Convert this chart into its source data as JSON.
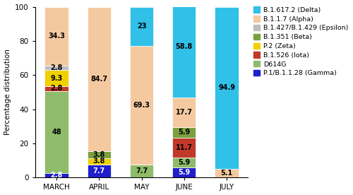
{
  "months": [
    "MARCH",
    "APRIL",
    "MAY",
    "JUNE",
    "JULY"
  ],
  "variants": [
    {
      "name": "P.1/B.1.1.28 (Gamma)",
      "color": "#1F1FCC",
      "values": [
        2.8,
        7.7,
        0.0,
        5.9,
        0.0
      ]
    },
    {
      "name": "D614G",
      "color": "#8FBC6A",
      "values": [
        48.0,
        0.0,
        7.7,
        5.9,
        0.0
      ]
    },
    {
      "name": "B.1.526 (Iota)",
      "color": "#C0392B",
      "values": [
        2.8,
        0.0,
        0.0,
        11.7,
        0.0
      ]
    },
    {
      "name": "P.2 (Zeta)",
      "color": "#F0D000",
      "values": [
        9.3,
        3.8,
        0.0,
        0.0,
        0.0
      ]
    },
    {
      "name": "B.1.351 (Beta)",
      "color": "#7AA040",
      "values": [
        0.0,
        3.8,
        0.0,
        5.9,
        0.0
      ]
    },
    {
      "name": "B.1.427/B.1.429 (Epsilon)",
      "color": "#BEBEBE",
      "values": [
        2.8,
        0.0,
        0.0,
        0.0,
        0.0
      ]
    },
    {
      "name": "B.1.1.7 (Alpha)",
      "color": "#F5C9A0",
      "values": [
        34.3,
        84.7,
        69.3,
        17.7,
        5.1
      ]
    },
    {
      "name": "B.1.617.2 (Delta)",
      "color": "#30C0E8",
      "values": [
        0.0,
        0.0,
        23.0,
        58.8,
        94.9
      ]
    }
  ],
  "labels": {
    "MARCH": {
      "P.1/B.1.1.28 (Gamma)": "2.8",
      "D614G": "48",
      "B.1.526 (Iota)": "2.8",
      "P.2 (Zeta)": "9.3",
      "B.1.427/B.1.429 (Epsilon)": "2.8",
      "B.1.1.7 (Alpha)": "34.3"
    },
    "APRIL": {
      "P.1/B.1.1.28 (Gamma)": "7.7",
      "B.1.351 (Beta)": "3.8",
      "P.2 (Zeta)": "3.8",
      "B.1.1.7 (Alpha)": "84.7"
    },
    "MAY": {
      "D614G": "7.7",
      "B.1.1.7 (Alpha)": "69.3",
      "B.1.617.2 (Delta)": "23"
    },
    "JUNE": {
      "P.1/B.1.1.28 (Gamma)": "5.9",
      "D614G": "5.9",
      "B.1.526 (Iota)": "11.7",
      "B.1.351 (Beta)": "5.9",
      "B.1.1.7 (Alpha)": "17.7",
      "B.1.617.2 (Delta)": "58.8"
    },
    "JULY": {
      "B.1.1.7 (Alpha)": "5.1",
      "B.1.617.2 (Delta)": "94.9"
    }
  },
  "ylabel": "Percentage distribution",
  "ylim": [
    0,
    100
  ],
  "yticks": [
    0,
    20,
    40,
    60,
    80,
    100
  ],
  "bar_width": 0.55,
  "label_fontsize": 7,
  "tick_fontsize": 7.5,
  "legend_fontsize": 6.8,
  "ylabel_fontsize": 7.5
}
